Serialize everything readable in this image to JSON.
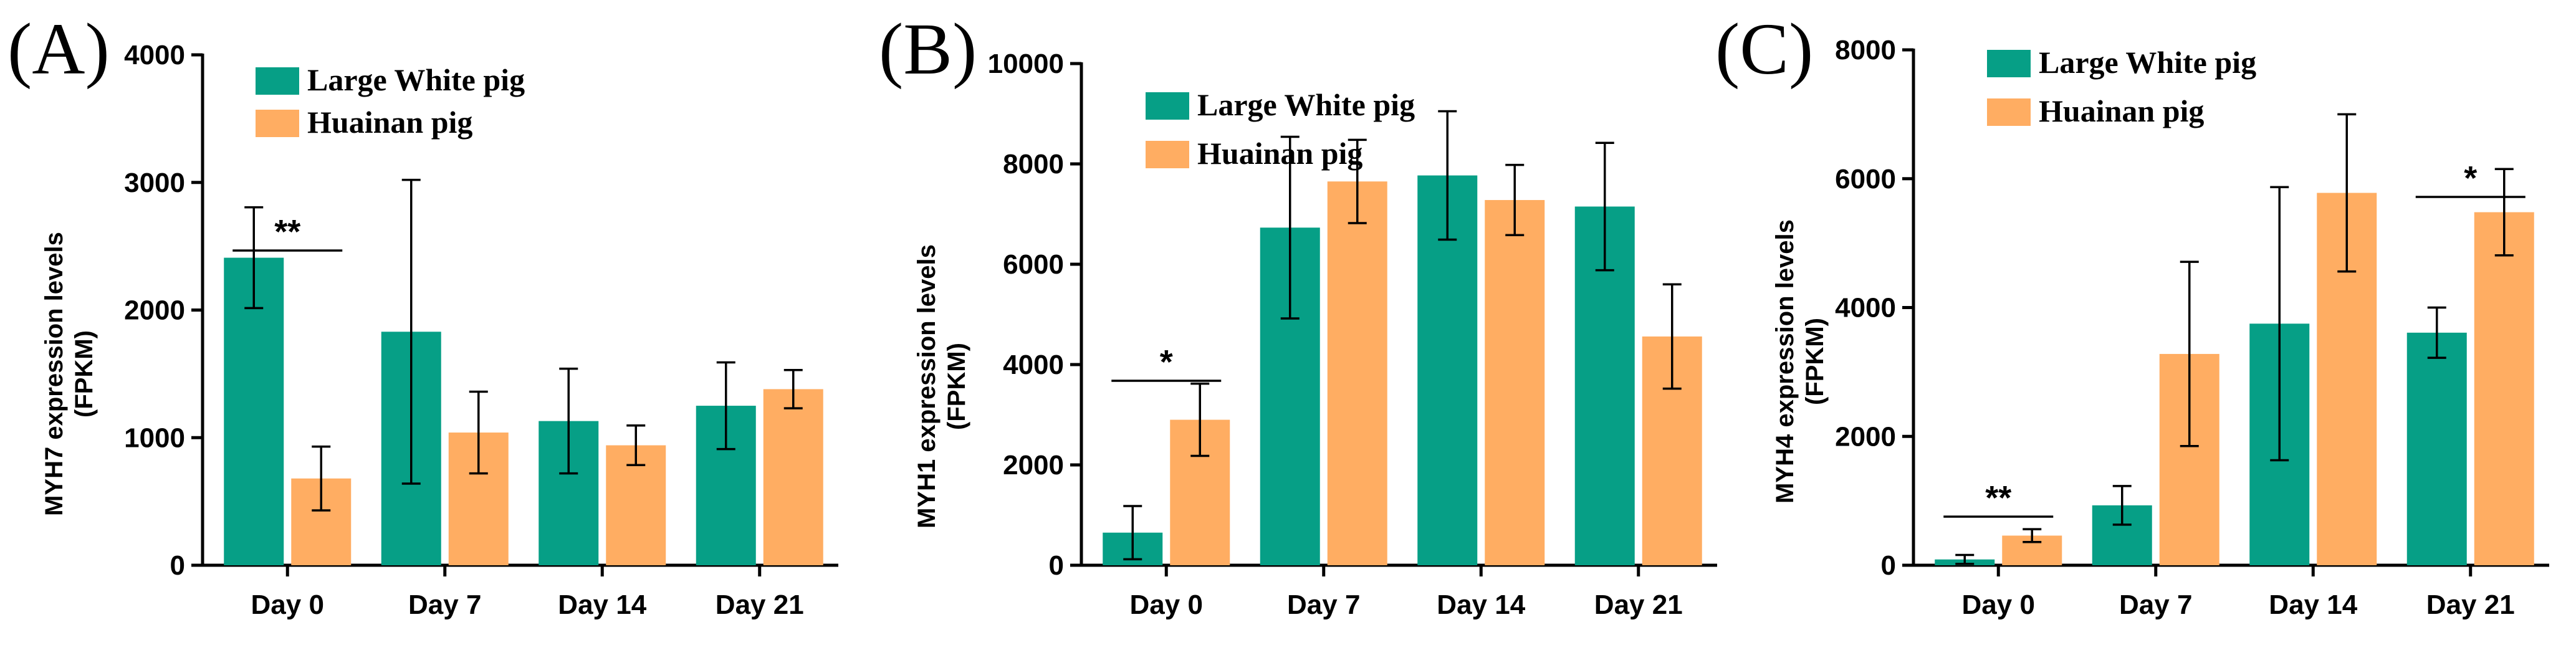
{
  "colors": {
    "large_white": "#069F86",
    "huainan": "#FFAD62"
  },
  "chart_data": [
    {
      "type": "bar",
      "panel": "(A)",
      "ylabel": "MYH7 expression levels",
      "ylabel2": "(FPKM)",
      "categories": [
        "Day 0",
        "Day 7",
        "Day 14",
        "Day 21"
      ],
      "ylim": [
        0,
        4000
      ],
      "yticks": [
        0,
        1000,
        2000,
        3000,
        4000
      ],
      "series": [
        {
          "name": "Large White pig",
          "values": [
            2410,
            1830,
            1130,
            1250
          ],
          "errors": [
            395,
            1190,
            410,
            340
          ]
        },
        {
          "name": "Huainan pig",
          "values": [
            680,
            1040,
            940,
            1380
          ],
          "errors": [
            250,
            320,
            155,
            150
          ]
        }
      ],
      "significance": [
        {
          "category": 0,
          "label": "**"
        }
      ]
    },
    {
      "type": "bar",
      "panel": "(B)",
      "ylabel": "MYH1 expression levels",
      "ylabel2": "(FPKM)",
      "categories": [
        "Day 0",
        "Day 7",
        "Day 14",
        "Day 21"
      ],
      "ylim": [
        0,
        10000
      ],
      "yticks": [
        0,
        2000,
        4000,
        6000,
        8000,
        10000
      ],
      "series": [
        {
          "name": "Large White pig",
          "values": [
            650,
            6730,
            7770,
            7150
          ],
          "errors": [
            530,
            1810,
            1280,
            1270
          ]
        },
        {
          "name": "Huainan pig",
          "values": [
            2900,
            7650,
            7280,
            4560
          ],
          "errors": [
            720,
            830,
            700,
            1040
          ]
        }
      ],
      "significance": [
        {
          "category": 0,
          "label": "*"
        }
      ]
    },
    {
      "type": "bar",
      "panel": "(C)",
      "ylabel": "MYH4 expression levels",
      "ylabel2": "(FPKM)",
      "categories": [
        "Day 0",
        "Day 7",
        "Day 14",
        "Day 21"
      ],
      "ylim": [
        0,
        8000
      ],
      "yticks": [
        0,
        2000,
        4000,
        6000,
        8000
      ],
      "series": [
        {
          "name": "Large White pig",
          "values": [
            90,
            930,
            3750,
            3610
          ],
          "errors": [
            70,
            300,
            2120,
            390
          ]
        },
        {
          "name": "Huainan pig",
          "values": [
            460,
            3280,
            5780,
            5480
          ],
          "errors": [
            100,
            1430,
            1220,
            670
          ]
        }
      ],
      "significance": [
        {
          "category": 3,
          "label": "*"
        },
        {
          "category": 0,
          "label": "**"
        }
      ]
    }
  ]
}
